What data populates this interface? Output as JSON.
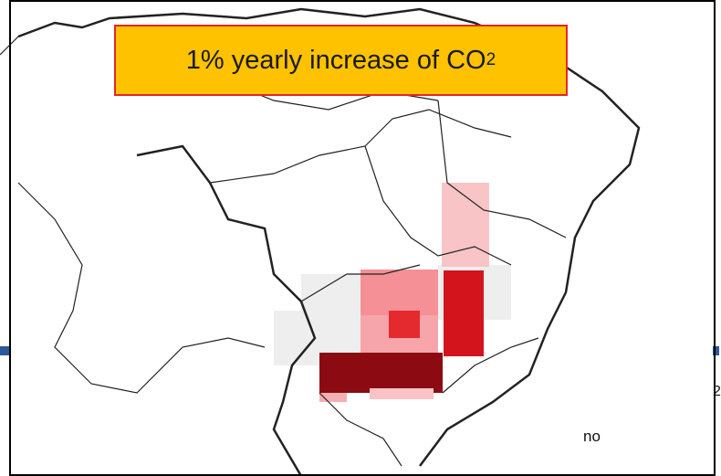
{
  "title": {
    "text": "1% yearly increase of CO",
    "subscript": "2"
  },
  "label": "no",
  "edge_label": "2"
}
